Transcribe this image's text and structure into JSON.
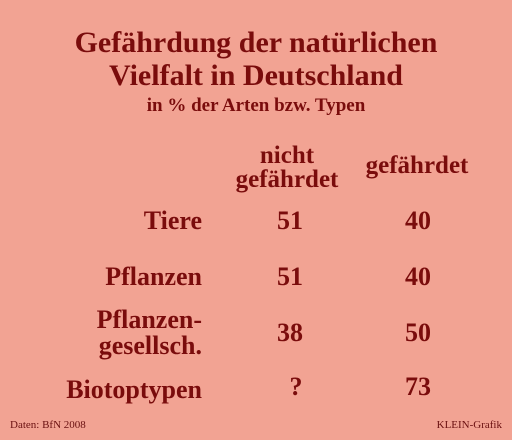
{
  "chart_data": {
    "type": "table",
    "title_lines": [
      "Gefährdung der natürlichen",
      "Vielfalt in Deutschland"
    ],
    "subtitle": "in % der Arten bzw. Typen",
    "columns": [
      {
        "lines": [
          "nicht",
          "gefährdet"
        ]
      },
      {
        "lines": [
          "gefährdet"
        ]
      }
    ],
    "rows": [
      {
        "label_lines": [
          "Tiere"
        ],
        "values": [
          "51",
          "40"
        ]
      },
      {
        "label_lines": [
          "Pflanzen"
        ],
        "values": [
          "51",
          "40"
        ]
      },
      {
        "label_lines": [
          "Pflanzen-",
          "gesellsch."
        ],
        "values": [
          "38",
          "50"
        ]
      },
      {
        "label_lines": [
          "Biotoptypen"
        ],
        "values": [
          "?",
          "73"
        ]
      }
    ]
  },
  "footer": {
    "source": "Daten: BfN 2008",
    "credit": "KLEIN-Grafik"
  },
  "colors": {
    "background": "#f2a393",
    "text": "#7a0c0c"
  }
}
